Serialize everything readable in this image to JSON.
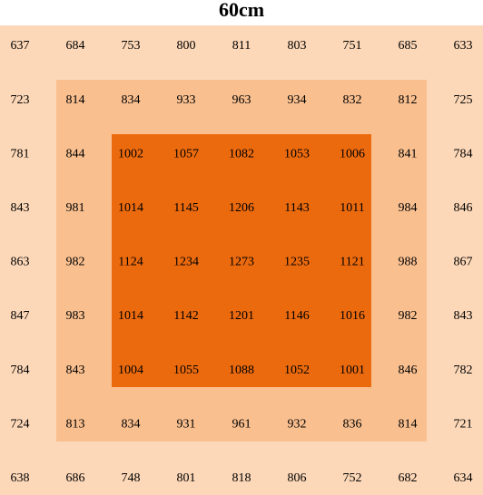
{
  "title": "60cm",
  "grid": {
    "rows": [
      [
        637,
        684,
        753,
        800,
        811,
        803,
        751,
        685,
        633
      ],
      [
        723,
        814,
        834,
        933,
        963,
        934,
        832,
        812,
        725
      ],
      [
        781,
        844,
        1002,
        1057,
        1082,
        1053,
        1006,
        841,
        784
      ],
      [
        843,
        981,
        1014,
        1145,
        1206,
        1143,
        1011,
        984,
        846
      ],
      [
        863,
        982,
        1124,
        1234,
        1273,
        1235,
        1121,
        988,
        867
      ],
      [
        847,
        983,
        1014,
        1142,
        1201,
        1146,
        1016,
        982,
        843
      ],
      [
        784,
        843,
        1004,
        1055,
        1088,
        1052,
        1001,
        846,
        782
      ],
      [
        724,
        813,
        834,
        931,
        961,
        932,
        836,
        814,
        721
      ],
      [
        638,
        686,
        748,
        801,
        818,
        806,
        752,
        682,
        634
      ]
    ]
  }
}
